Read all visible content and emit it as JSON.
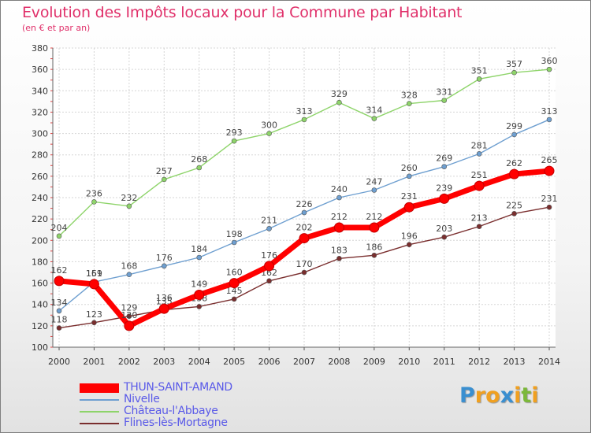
{
  "title": "Evolution des Impôts locaux pour la Commune par Habitant",
  "subtitle": "(en € et par an)",
  "logo": {
    "letters": [
      "P",
      "r",
      "o",
      "x",
      "i",
      "t",
      "i"
    ],
    "colors": [
      "#3a8fd0",
      "#f0a020",
      "#f0a020",
      "#3a8fd0",
      "#f0a020",
      "#7cb83a",
      "#f0a020"
    ]
  },
  "chart_data": {
    "type": "line",
    "x": [
      2000,
      2001,
      2002,
      2003,
      2004,
      2005,
      2006,
      2007,
      2008,
      2009,
      2010,
      2011,
      2012,
      2013,
      2014
    ],
    "ylim": [
      100,
      380
    ],
    "yticks": [
      100,
      120,
      140,
      160,
      180,
      200,
      220,
      240,
      260,
      280,
      300,
      320,
      340,
      360,
      380
    ],
    "grid": true,
    "legend_position": "bottom-left",
    "series": [
      {
        "name": "Château-l'Abbaye",
        "color": "#8ed46a",
        "values": [
          204,
          236,
          232,
          257,
          268,
          293,
          300,
          313,
          329,
          314,
          328,
          331,
          351,
          357,
          360
        ]
      },
      {
        "name": "Nivelle",
        "color": "#6e9fd0",
        "values": [
          134,
          161,
          168,
          176,
          184,
          198,
          211,
          226,
          240,
          247,
          260,
          269,
          281,
          299,
          313
        ]
      },
      {
        "name": "Flines-lès-Mortagne",
        "color": "#7a2e2e",
        "values": [
          118,
          123,
          129,
          135,
          138,
          145,
          162,
          170,
          183,
          186,
          196,
          203,
          213,
          225,
          231
        ]
      },
      {
        "name": "THUN-SAINT-AMAND",
        "color": "#ff0000",
        "values": [
          162,
          159,
          120,
          136,
          149,
          160,
          176,
          202,
          212,
          212,
          231,
          239,
          251,
          262,
          265
        ]
      }
    ]
  }
}
